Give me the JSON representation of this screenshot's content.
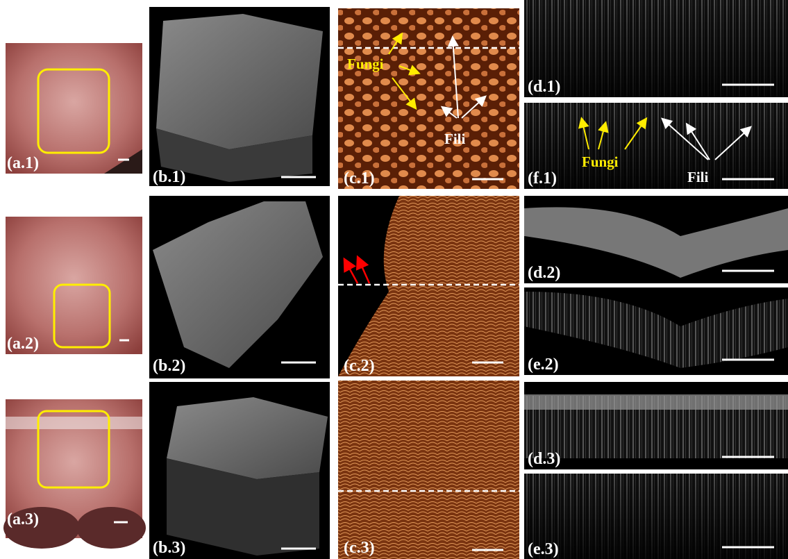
{
  "panels": [
    "(a.1)",
    "(b.1)",
    "(c.1)",
    "(d.1)",
    "(f.1)",
    "(a.2)",
    "(b.2)",
    "(c.2)",
    "(d.2)",
    "(e.2)",
    "(a.3)",
    "(b.3)",
    "(c.3)",
    "(d.3)",
    "(e.3)"
  ],
  "annotations": {
    "c1": {
      "fungi": "Fungi",
      "fili": "Fili"
    },
    "f1": {
      "fungi": "Fungi",
      "fili": "Fili"
    }
  }
}
